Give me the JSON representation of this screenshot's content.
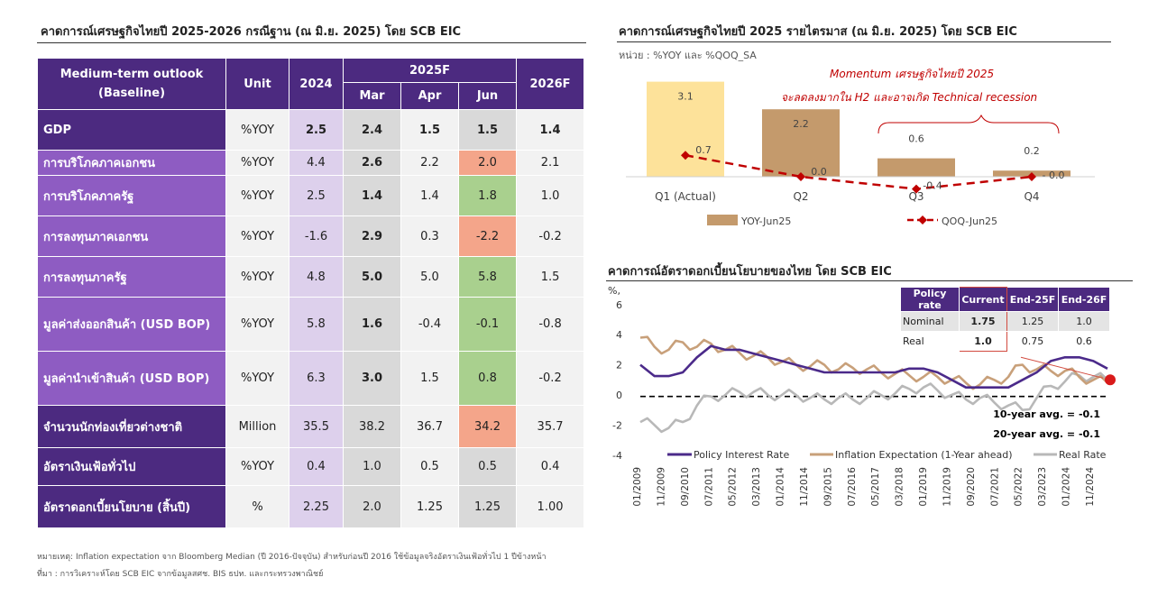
{
  "left": {
    "title": "คาดการณ์เศรษฐกิจไทยปี 2025-2026 กรณีฐาน (ณ มิ.ย. 2025) โดย SCB EIC",
    "table": {
      "head_label_1": "Medium-term outlook",
      "head_label_2": "(Baseline)",
      "unit": "Unit",
      "y2024": "2024",
      "y2025f": "2025F",
      "mar": "Mar",
      "apr": "Apr",
      "jun": "Jun",
      "y2026f": "2026F",
      "rows": [
        {
          "label": "GDP",
          "unit": "%YOY",
          "y2024": "2.5",
          "mar": "2.4",
          "apr": "1.5",
          "jun": "1.5",
          "f26": "1.4"
        },
        {
          "label": "การบริโภคภาคเอกชน",
          "unit": "%YOY",
          "y2024": "4.4",
          "mar": "2.6",
          "apr": "2.2",
          "jun": "2.0",
          "f26": "2.1"
        },
        {
          "label": "การบริโภคภาครัฐ",
          "unit": "%YOY",
          "y2024": "2.5",
          "mar": "1.4",
          "apr": "1.4",
          "jun": "1.8",
          "f26": "1.0"
        },
        {
          "label": "การลงทุนภาคเอกชน",
          "unit": "%YOY",
          "y2024": "-1.6",
          "mar": "2.9",
          "apr": "0.3",
          "jun": "-2.2",
          "f26": "-0.2"
        },
        {
          "label": "การลงทุนภาครัฐ",
          "unit": "%YOY",
          "y2024": "4.8",
          "mar": "5.0",
          "apr": "5.0",
          "jun": "5.8",
          "f26": "1.5"
        },
        {
          "label": "มูลค่าส่งออกสินค้า  (USD BOP)",
          "unit": "%YOY",
          "y2024": "5.8",
          "mar": "1.6",
          "apr": "-0.4",
          "jun": "-0.1",
          "f26": "-0.8"
        },
        {
          "label": "มูลค่านำเข้าสินค้า  (USD BOP)",
          "unit": "%YOY",
          "y2024": "6.3",
          "mar": "3.0",
          "apr": "1.5",
          "jun": "0.8",
          "f26": "-0.2"
        },
        {
          "label": "จำนวนนักท่องเที่ยวต่างชาติ",
          "unit": "Million",
          "y2024": "35.5",
          "mar": "38.2",
          "apr": "36.7",
          "jun": "34.2",
          "f26": "35.7"
        },
        {
          "label": "อัตราเงินเฟ้อทั่วไป",
          "unit": "%YOY",
          "y2024": "0.4",
          "mar": "1.0",
          "apr": "0.5",
          "jun": "0.5",
          "f26": "0.4"
        },
        {
          "label": "อัตราดอกเบี้ยนโยบาย  (สิ้นปี)",
          "unit": "%",
          "y2024": "2.25",
          "mar": "2.0",
          "apr": "1.25",
          "jun": "1.25",
          "f26": "1.00"
        }
      ]
    },
    "note1": "หมายเหตุ: Inflation expectation จาก Bloomberg Median (ปี 2016-ปัจจุบัน) สำหรับก่อนปี 2016 ใช้ข้อมูลจริงอัตราเงินเฟ้อทั่วไป 1 ปีข้างหน้า",
    "note2": "ที่มา : การวิเคราะห์โดย SCB EIC จากข้อมูลสศช. BIS ธปท. และกระทรวงพาณิชย์"
  },
  "chart1_title": "คาดการณ์เศรษฐกิจไทยปี  2025 รายไตรมาส (ณ มิ.ย. 2025) โดย  SCB EIC",
  "chart1_unit": "หน่วย : %YOY และ %QOQ_SA",
  "chart1_annot_1": "Momentum เศรษฐกิจไทยปี  2025",
  "chart1_annot_2": "จะลดลงมากใน  H2 และอาจเกิด  Technical recession",
  "chart2_title": "คาดการณ์อัตราดอกเบี้ยนโยบายของไทย  โดย SCB EIC",
  "chart2_unit": "%,",
  "chart2_avg10": "10-year avg. = -0.1",
  "chart2_avg20": "20-year avg. = -0.1",
  "policy_table": {
    "h0": "Policy rate",
    "h1": "Current",
    "h2": "End-25F",
    "h3": "End-26F",
    "r1": {
      "k": "Nominal",
      "c": "1.75",
      "e25": "1.25",
      "e26": "1.0"
    },
    "r2": {
      "k": "Real",
      "c": "1.0",
      "e25": "0.75",
      "e26": "0.6"
    }
  },
  "colors": {
    "purple_dark": "#4c2a80",
    "purple_light": "#8e5cc2",
    "bar_yoy": "#c49a6c",
    "bar_q1": "#fde29a",
    "qoq_line": "#c00000",
    "policy": "#4b2a8a",
    "inflation": "#c8a07a",
    "real": "#b8b8b8"
  },
  "chart_data": [
    {
      "type": "bar",
      "title": "คาดการณ์เศรษฐกิจไทยปี  2025 รายไตรมาส (ณ มิ.ย. 2025) โดย  SCB EIC",
      "categories": [
        "Q1 (Actual)",
        "Q2",
        "Q3",
        "Q4"
      ],
      "series": [
        {
          "name": "YOY-Jun25",
          "values": [
            3.1,
            2.2,
            0.6,
            0.2
          ],
          "labels": [
            "3.1",
            "2.2",
            "0.6",
            "0.2"
          ]
        },
        {
          "name": "QOQ-Jun25",
          "values": [
            0.7,
            0.0,
            -0.4,
            -0.0
          ],
          "labels": [
            "0.7",
            "0.0",
            "-0.4",
            "- 0.0"
          ]
        }
      ],
      "ylim": [
        -0.6,
        3.4
      ]
    },
    {
      "type": "line",
      "title": "คาดการณ์อัตราดอกเบี้ยนโยบายของไทย  โดย SCB EIC",
      "ylabel": "%,",
      "ylim": [
        -4,
        6
      ],
      "yticks": [
        "6",
        "4",
        "2",
        "0",
        "-2",
        "-4"
      ],
      "xticks": [
        "01/2009",
        "11/2009",
        "09/2010",
        "07/2011",
        "05/2012",
        "03/2013",
        "01/2014",
        "11/2014",
        "09/2015",
        "07/2016",
        "05/2017",
        "03/2018",
        "01/2019",
        "11/2019",
        "09/2020",
        "07/2021",
        "05/2022",
        "03/2023",
        "01/2024",
        "11/2024"
      ],
      "x": [
        2009.0,
        2009.5,
        2010.0,
        2010.5,
        2011.0,
        2011.5,
        2012.0,
        2012.5,
        2013.0,
        2013.5,
        2014.0,
        2014.5,
        2015.0,
        2015.5,
        2016.0,
        2016.5,
        2017.0,
        2017.5,
        2018.0,
        2018.5,
        2019.0,
        2019.5,
        2020.0,
        2020.5,
        2021.0,
        2021.5,
        2022.0,
        2022.5,
        2023.0,
        2023.5,
        2024.0,
        2024.5,
        2025.0,
        2025.5
      ],
      "series": [
        {
          "name": "Policy Interest Rate",
          "values": [
            2.0,
            1.25,
            1.25,
            1.5,
            2.5,
            3.25,
            3.0,
            3.0,
            2.75,
            2.5,
            2.25,
            2.0,
            1.75,
            1.5,
            1.5,
            1.5,
            1.5,
            1.5,
            1.5,
            1.75,
            1.75,
            1.5,
            1.0,
            0.5,
            0.5,
            0.5,
            0.5,
            1.0,
            1.5,
            2.25,
            2.5,
            2.5,
            2.25,
            1.75
          ]
        },
        {
          "name": "Inflation Expectation (1-Year ahead)",
          "values": [
            3.8,
            3.2,
            3.0,
            3.5,
            3.2,
            3.4,
            3.0,
            2.8,
            2.6,
            2.5,
            2.2,
            2.0,
            1.9,
            2.0,
            1.7,
            1.8,
            1.7,
            1.5,
            1.4,
            1.3,
            1.2,
            1.2,
            1.0,
            0.8,
            0.7,
            1.0,
            1.2,
            2.0,
            1.7,
            1.6,
            1.6,
            1.2,
            1.0,
            0.8
          ]
        },
        {
          "name": "Real Rate",
          "values": [
            -1.8,
            -2.0,
            -2.2,
            -1.8,
            -0.7,
            -0.1,
            0.0,
            0.2,
            0.2,
            0.0,
            0.0,
            0.0,
            -0.2,
            -0.3,
            -0.2,
            -0.3,
            -0.2,
            0.0,
            0.1,
            0.4,
            0.5,
            0.3,
            0.0,
            -0.3,
            -0.2,
            -0.5,
            -0.7,
            -1.0,
            -0.2,
            0.6,
            0.9,
            1.3,
            1.2,
            1.0
          ]
        }
      ],
      "legend": [
        "Policy Interest Rate",
        "Inflation Expectation (1-Year ahead)",
        "Real Rate"
      ],
      "forecast_point": 1.0
    }
  ]
}
